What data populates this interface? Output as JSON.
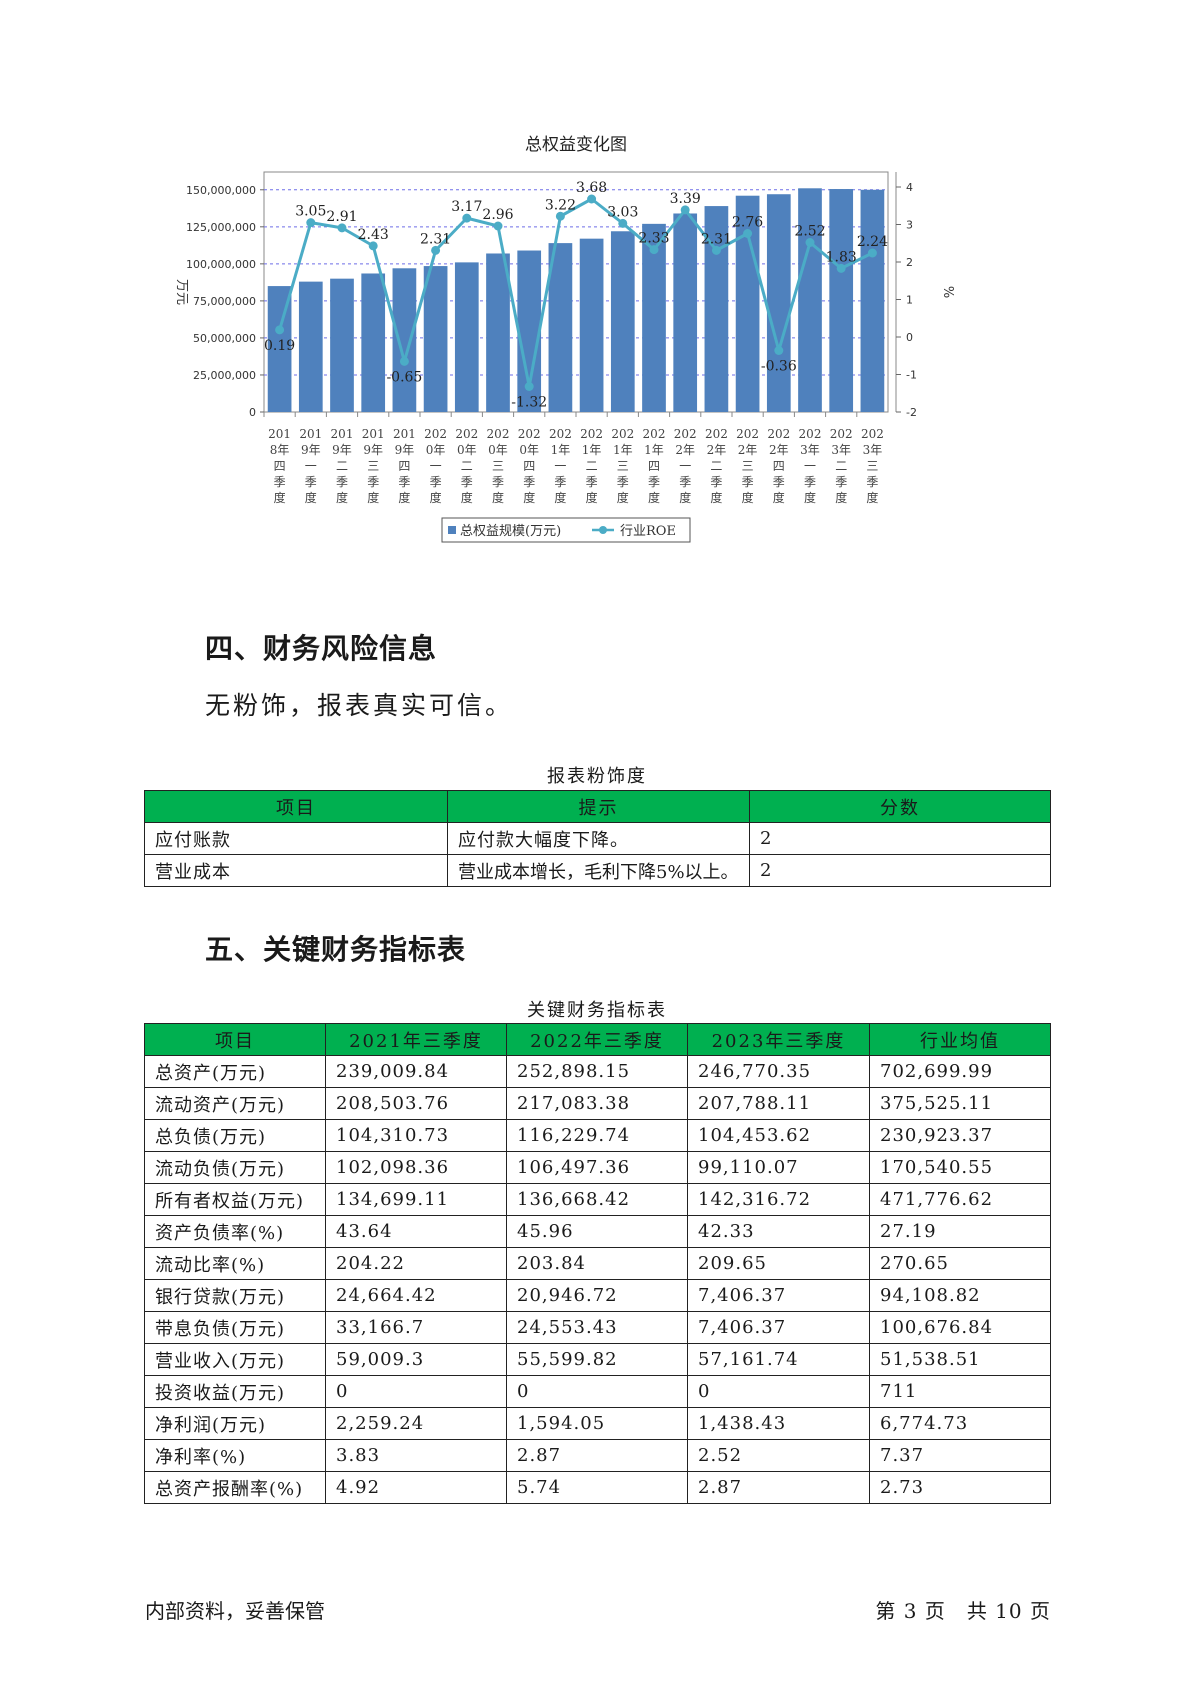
{
  "chart_data": {
    "type": "bar",
    "title": "总权益变化图",
    "ylabel": "万元",
    "y2label": "%",
    "categories": [
      "2018年四季度",
      "2019年一季度",
      "2019年二季度",
      "2019年三季度",
      "2019年四季度",
      "2020年一季度",
      "2020年二季度",
      "2020年三季度",
      "2020年四季度",
      "2021年一季度",
      "2021年二季度",
      "2021年三季度",
      "2021年四季度",
      "2022年一季度",
      "2022年二季度",
      "2022年三季度",
      "2022年四季度",
      "2023年一季度",
      "2023年二季度",
      "2023年三季度"
    ],
    "category_lines": [
      [
        "201",
        "8年",
        "四",
        "季",
        "度"
      ],
      [
        "201",
        "9年",
        "一",
        "季",
        "度"
      ],
      [
        "201",
        "9年",
        "二",
        "季",
        "度"
      ],
      [
        "201",
        "9年",
        "三",
        "季",
        "度"
      ],
      [
        "201",
        "9年",
        "四",
        "季",
        "度"
      ],
      [
        "202",
        "0年",
        "一",
        "季",
        "度"
      ],
      [
        "202",
        "0年",
        "二",
        "季",
        "度"
      ],
      [
        "202",
        "0年",
        "三",
        "季",
        "度"
      ],
      [
        "202",
        "0年",
        "四",
        "季",
        "度"
      ],
      [
        "202",
        "1年",
        "一",
        "季",
        "度"
      ],
      [
        "202",
        "1年",
        "二",
        "季",
        "度"
      ],
      [
        "202",
        "1年",
        "三",
        "季",
        "度"
      ],
      [
        "202",
        "1年",
        "四",
        "季",
        "度"
      ],
      [
        "202",
        "2年",
        "一",
        "季",
        "度"
      ],
      [
        "202",
        "2年",
        "二",
        "季",
        "度"
      ],
      [
        "202",
        "2年",
        "三",
        "季",
        "度"
      ],
      [
        "202",
        "2年",
        "四",
        "季",
        "度"
      ],
      [
        "202",
        "3年",
        "一",
        "季",
        "度"
      ],
      [
        "202",
        "3年",
        "二",
        "季",
        "度"
      ],
      [
        "202",
        "3年",
        "三",
        "季",
        "度"
      ]
    ],
    "series": [
      {
        "name": "总权益规模(万元)",
        "type": "bar",
        "axis": "left",
        "color": "#4f81bd",
        "values": [
          85000000,
          88000000,
          90000000,
          93500000,
          97000000,
          98500000,
          101000000,
          107000000,
          109000000,
          114000000,
          117000000,
          122000000,
          127000000,
          134000000,
          139000000,
          146000000,
          147000000,
          151000000,
          150500000,
          150000000
        ]
      },
      {
        "name": "行业ROE",
        "type": "line",
        "axis": "right",
        "color": "#4bacc6",
        "values": [
          0.19,
          3.05,
          2.91,
          2.43,
          -0.65,
          2.31,
          3.17,
          2.96,
          -1.32,
          3.22,
          3.68,
          3.03,
          2.33,
          3.39,
          2.31,
          2.76,
          -0.36,
          2.52,
          1.83,
          2.24
        ],
        "labels": [
          "0.19",
          "3.05",
          "2.91",
          "2.43",
          "-0.65",
          "2.31",
          "3.17",
          "2.96",
          "-1.32",
          "3.22",
          "3.68",
          "3.03",
          "2.33",
          "3.39",
          "2.31",
          "2.76",
          "-0.36",
          "2.52",
          "1.83",
          "2.24"
        ]
      }
    ],
    "ylim": [
      0,
      162000000
    ],
    "yticks": [
      0,
      25000000,
      50000000,
      75000000,
      100000000,
      125000000,
      150000000
    ],
    "ytick_labels": [
      "0",
      "25,000,000",
      "50,000,000",
      "75,000,000",
      "100,000,000",
      "125,000,000",
      "150,000,000"
    ],
    "y2lim": [
      -2,
      4.4
    ],
    "y2ticks": [
      -2,
      -1,
      0,
      1,
      2,
      3,
      4
    ],
    "y2tick_labels": [
      "-2",
      "-1",
      "0",
      "1",
      "2",
      "3",
      "4"
    ],
    "grid": true,
    "legend_position": "bottom"
  },
  "section4": {
    "heading": "四、财务风险信息",
    "text": "无粉饰，报表真实可信。"
  },
  "table1": {
    "caption": "报表粉饰度",
    "headers": [
      "项目",
      "提示",
      "分数"
    ],
    "rows": [
      [
        "应付账款",
        "应付款大幅度下降。",
        "2"
      ],
      [
        "营业成本",
        "营业成本增长，毛利下降5%以上。",
        "2"
      ]
    ]
  },
  "section5": {
    "heading": "五、关键财务指标表"
  },
  "table2": {
    "caption": "关键财务指标表",
    "headers": [
      "项目",
      "2021年三季度",
      "2022年三季度",
      "2023年三季度",
      "行业均值"
    ],
    "rows": [
      [
        "总资产(万元)",
        "239,009.84",
        "252,898.15",
        "246,770.35",
        "702,699.99"
      ],
      [
        "流动资产(万元)",
        "208,503.76",
        "217,083.38",
        "207,788.11",
        "375,525.11"
      ],
      [
        "总负债(万元)",
        "104,310.73",
        "116,229.74",
        "104,453.62",
        "230,923.37"
      ],
      [
        "流动负债(万元)",
        "102,098.36",
        "106,497.36",
        "99,110.07",
        "170,540.55"
      ],
      [
        "所有者权益(万元)",
        "134,699.11",
        "136,668.42",
        "142,316.72",
        "471,776.62"
      ],
      [
        "资产负债率(%)",
        "43.64",
        "45.96",
        "42.33",
        "27.19"
      ],
      [
        "流动比率(%)",
        "204.22",
        "203.84",
        "209.65",
        "270.65"
      ],
      [
        "银行贷款(万元)",
        "24,664.42",
        "20,946.72",
        "7,406.37",
        "94,108.82"
      ],
      [
        "带息负债(万元)",
        "33,166.7",
        "24,553.43",
        "7,406.37",
        "100,676.84"
      ],
      [
        "营业收入(万元)",
        "59,009.3",
        "55,599.82",
        "57,161.74",
        "51,538.51"
      ],
      [
        "投资收益(万元)",
        "0",
        "0",
        "0",
        "711"
      ],
      [
        "净利润(万元)",
        "2,259.24",
        "1,594.05",
        "1,438.43",
        "6,774.73"
      ],
      [
        "净利率(%)",
        "3.83",
        "2.87",
        "2.52",
        "7.37"
      ],
      [
        "总资产报酬率(%)",
        "4.92",
        "5.74",
        "2.87",
        "2.73"
      ]
    ]
  },
  "footer": {
    "left": "内部资料，妥善保管",
    "right": "第 3 页　共 10 页"
  }
}
